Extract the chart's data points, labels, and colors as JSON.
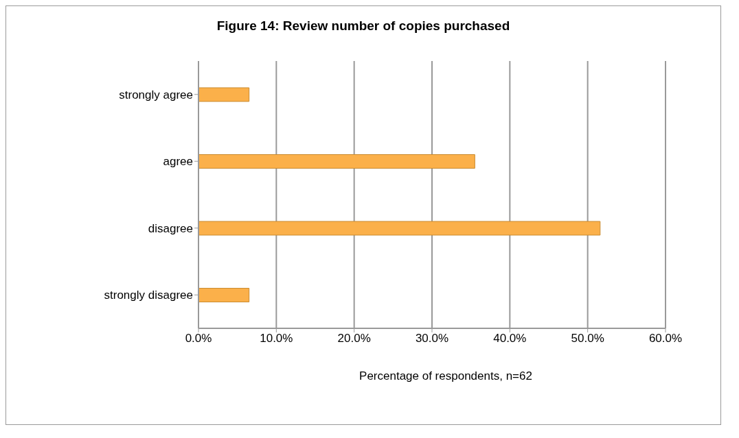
{
  "chart_data": {
    "type": "bar",
    "orientation": "horizontal",
    "title": "Figure 14: Review number of copies purchased",
    "xlabel": "Percentage of respondents, n=62",
    "categories": [
      "strongly agree",
      "agree",
      "disagree",
      "strongly disagree"
    ],
    "values": [
      6.5,
      35.5,
      51.6,
      6.5
    ],
    "color": "#fbb04a",
    "xlim": [
      0,
      60
    ],
    "xticks": [
      {
        "value": 0,
        "label": "0.0%"
      },
      {
        "value": 10,
        "label": "10.0%"
      },
      {
        "value": 20,
        "label": "20.0%"
      },
      {
        "value": 30,
        "label": "30.0%"
      },
      {
        "value": 40,
        "label": "40.0%"
      },
      {
        "value": 50,
        "label": "50.0%"
      },
      {
        "value": 60,
        "label": "60.0%"
      }
    ],
    "grid": "x",
    "legend": false
  }
}
